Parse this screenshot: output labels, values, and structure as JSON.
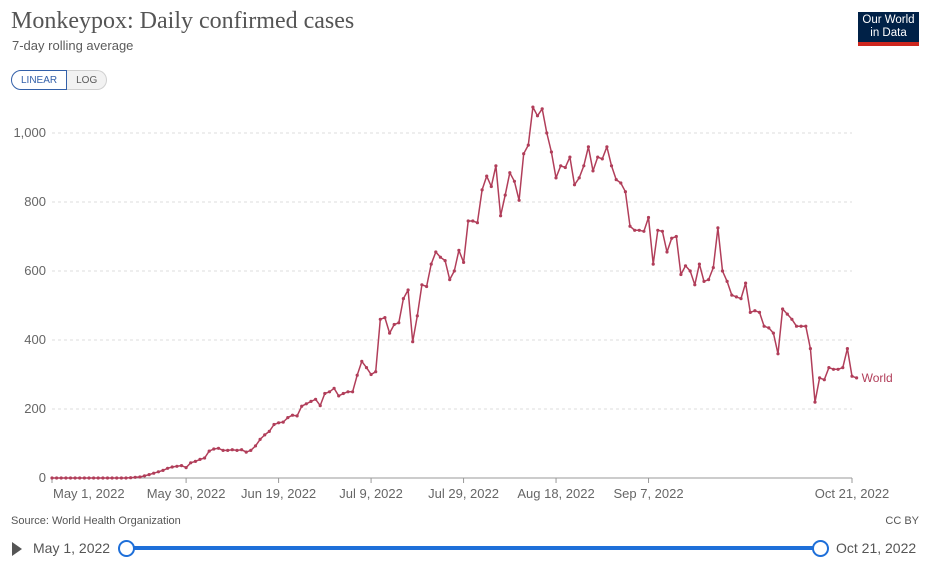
{
  "header": {
    "title": "Monkeypox: Daily confirmed cases",
    "subtitle": "7-day rolling average",
    "logo_line1": "Our World",
    "logo_line2": "in Data"
  },
  "scale_toggle": {
    "linear_label": "LINEAR",
    "log_label": "LOG",
    "selected": "LINEAR"
  },
  "footer": {
    "source": "Source: World Health Organization",
    "license": "CC BY"
  },
  "timeline": {
    "start_label": "May 1, 2022",
    "end_label": "Oct 21, 2022"
  },
  "colors": {
    "series": "#b13e5a",
    "accent": "#1e6fd9",
    "logo_bg": "#002147",
    "logo_bar": "#ce261e"
  },
  "chart_data": {
    "type": "line",
    "title": "Monkeypox: Daily confirmed cases",
    "subtitle": "7-day rolling average",
    "xlabel": "",
    "ylabel": "",
    "ylim": [
      0,
      1000
    ],
    "yticks": [
      "0",
      "200",
      "400",
      "600",
      "800",
      "1,000"
    ],
    "ytick_values": [
      0,
      200,
      400,
      600,
      800,
      1000
    ],
    "xticks": [
      "May 1, 2022",
      "May 30, 2022",
      "Jun 19, 2022",
      "Jul 9, 2022",
      "Jul 29, 2022",
      "Aug 18, 2022",
      "Sep 7, 2022",
      "Oct 21, 2022"
    ],
    "xtick_dates": [
      "2022-05-01",
      "2022-05-30",
      "2022-06-19",
      "2022-07-09",
      "2022-07-29",
      "2022-08-18",
      "2022-09-07",
      "2022-10-21"
    ],
    "grid": true,
    "legend": "right-end label",
    "series": [
      {
        "name": "World",
        "start_date": "2022-05-01",
        "end_date": "2022-10-21",
        "values": [
          0,
          0,
          0,
          0,
          0,
          0,
          0,
          0,
          0,
          0,
          0,
          0,
          0,
          0,
          0,
          0,
          0,
          1,
          2,
          3,
          6,
          10,
          14,
          18,
          22,
          28,
          32,
          34,
          36,
          30,
          44,
          48,
          54,
          58,
          78,
          84,
          86,
          80,
          80,
          82,
          80,
          82,
          75,
          80,
          93,
          112,
          125,
          135,
          155,
          160,
          162,
          175,
          182,
          180,
          208,
          215,
          222,
          228,
          210,
          245,
          250,
          260,
          238,
          245,
          250,
          250,
          298,
          338,
          320,
          300,
          308,
          460,
          465,
          420,
          445,
          450,
          520,
          545,
          395,
          470,
          560,
          555,
          620,
          655,
          640,
          630,
          575,
          600,
          660,
          625,
          745,
          745,
          740,
          835,
          875,
          845,
          905,
          760,
          820,
          885,
          860,
          805,
          940,
          965,
          1075,
          1050,
          1070,
          1000,
          945,
          870,
          905,
          900,
          930,
          850,
          870,
          905,
          960,
          890,
          930,
          925,
          960,
          905,
          865,
          855,
          830,
          730,
          718,
          718,
          715,
          755,
          620,
          718,
          715,
          655,
          695,
          700,
          590,
          615,
          600,
          560,
          620,
          570,
          575,
          610,
          725,
          600,
          570,
          530,
          525,
          520,
          565,
          480,
          485,
          480,
          440,
          435,
          420,
          360,
          490,
          475,
          460,
          440,
          440,
          440,
          375,
          220,
          290,
          285,
          320,
          315,
          315,
          320,
          375,
          295,
          290
        ]
      }
    ]
  }
}
